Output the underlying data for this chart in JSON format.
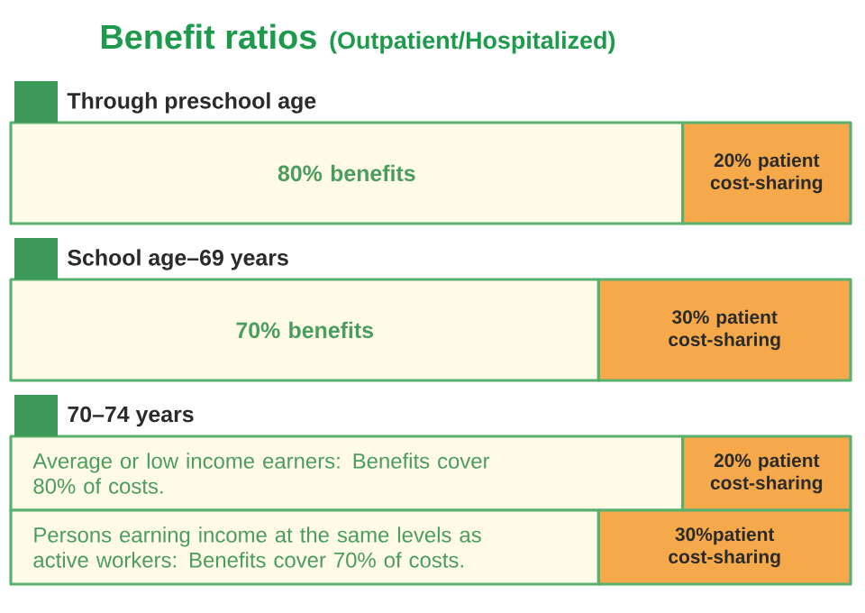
{
  "chart_data": {
    "type": "bar",
    "orientation": "horizontal",
    "stacked": true,
    "title": "Benefit ratios",
    "subtitle": "(Outpatient/Hospitalized)",
    "categories": [
      "Through preschool age",
      "School age–69 years",
      "70–74 years",
      null
    ],
    "xlim": [
      0,
      100
    ],
    "tick_labels": false,
    "series": [
      {
        "color": "#fffbe6",
        "values": [
          80,
          70,
          80,
          70
        ],
        "value_labels": [
          "80% benefits",
          "70% benefits",
          "Average or low income earners: Benefits cover 80% of costs.",
          "Persons earning income at the same levels as active workers: Benefits cover 70% of costs."
        ]
      },
      {
        "color": "#f5a94b",
        "values": [
          20,
          30,
          20,
          30
        ],
        "value_labels": [
          "20% patient cost-sharing",
          "30% patient cost-sharing",
          "20% patient cost-sharing",
          "30%patient cost-sharing"
        ]
      }
    ]
  }
}
